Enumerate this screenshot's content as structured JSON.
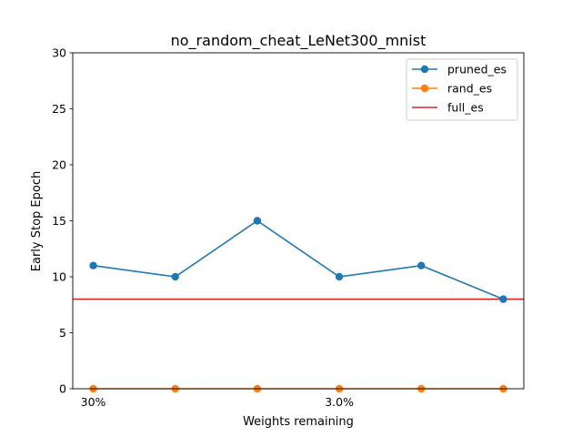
{
  "chart_data": {
    "type": "line",
    "title": "no_random_cheat_LeNet300_mnist",
    "xlabel": "Weights remaining",
    "ylabel": "Early Stop Epoch",
    "ylim": [
      0,
      30
    ],
    "yticks": [
      0,
      5,
      10,
      15,
      20,
      25,
      30
    ],
    "x_points": 6,
    "xtick_labels": [
      {
        "index": 0,
        "label": "30%"
      },
      {
        "index": 3,
        "label": "3.0%"
      }
    ],
    "grid": false,
    "legend_position": "top-right",
    "series": [
      {
        "name": "pruned_es",
        "color": "#1f77b4",
        "marker": "circle",
        "values": [
          11,
          10,
          15,
          10,
          11,
          8
        ]
      },
      {
        "name": "rand_es",
        "color": "#ff7f0e",
        "marker": "circle",
        "values": [
          0,
          0,
          0,
          0,
          0,
          0
        ]
      }
    ],
    "hlines": [
      {
        "name": "full_es",
        "color": "#d62728",
        "y": 8
      }
    ]
  }
}
